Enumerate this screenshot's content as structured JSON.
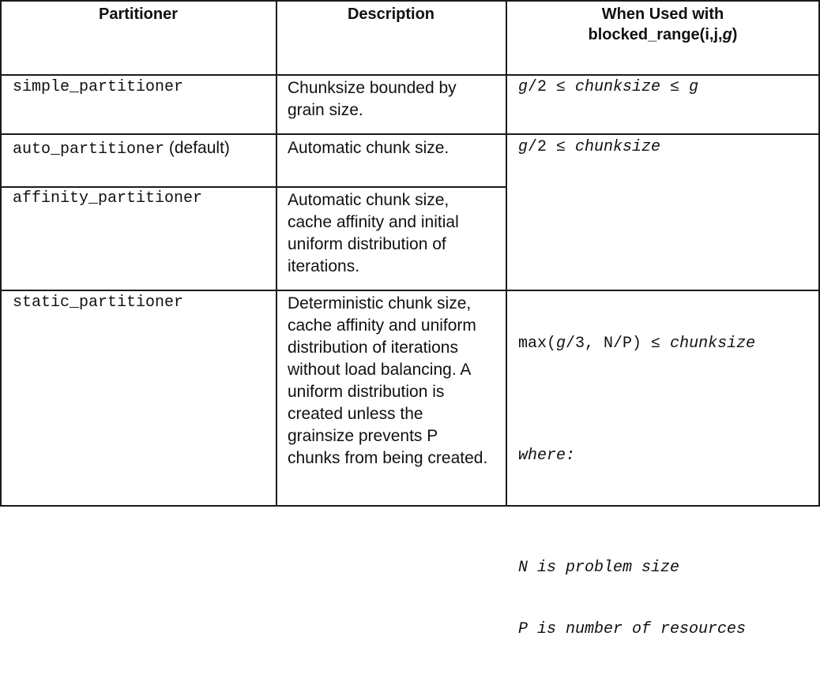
{
  "headers": {
    "col1": "Partitioner",
    "col2": "Description",
    "col3_line1": "When Used with",
    "col3_prefix": "blocked_range(i,j,",
    "col3_g": "g",
    "col3_suffix": ")"
  },
  "rows": [
    {
      "partitioner": "simple_partitioner",
      "description": "Chunksize bounded by grain size.",
      "constraint": {
        "g1": "g",
        "t1": "/2 ≤ ",
        "c": "chunksize",
        "t2": " ≤ ",
        "g2": "g"
      }
    },
    {
      "partitioner": "auto_partitioner",
      "note": " (default)",
      "description": "Automatic chunk size.",
      "constraint": {
        "g1": "g",
        "t1": "/2 ≤ ",
        "c": "chunksize"
      }
    },
    {
      "partitioner": "affinity_partitioner",
      "description": "Automatic chunk size, cache affinity and initial uniform distribution of iterations."
    },
    {
      "partitioner": "static_partitioner",
      "description": "Deterministic chunk size, cache affinity and uniform distribution of iterations without load balancing. A uniform distribution is created unless the grainsize prevents P chunks from being created.",
      "constraint": {
        "t0": "max(",
        "g1": "g",
        "t1": "/3, N/P) ≤ ",
        "c": "chunksize",
        "where": "where:",
        "n_line": "N is problem size",
        "p_line": "P is number of resources"
      }
    }
  ]
}
